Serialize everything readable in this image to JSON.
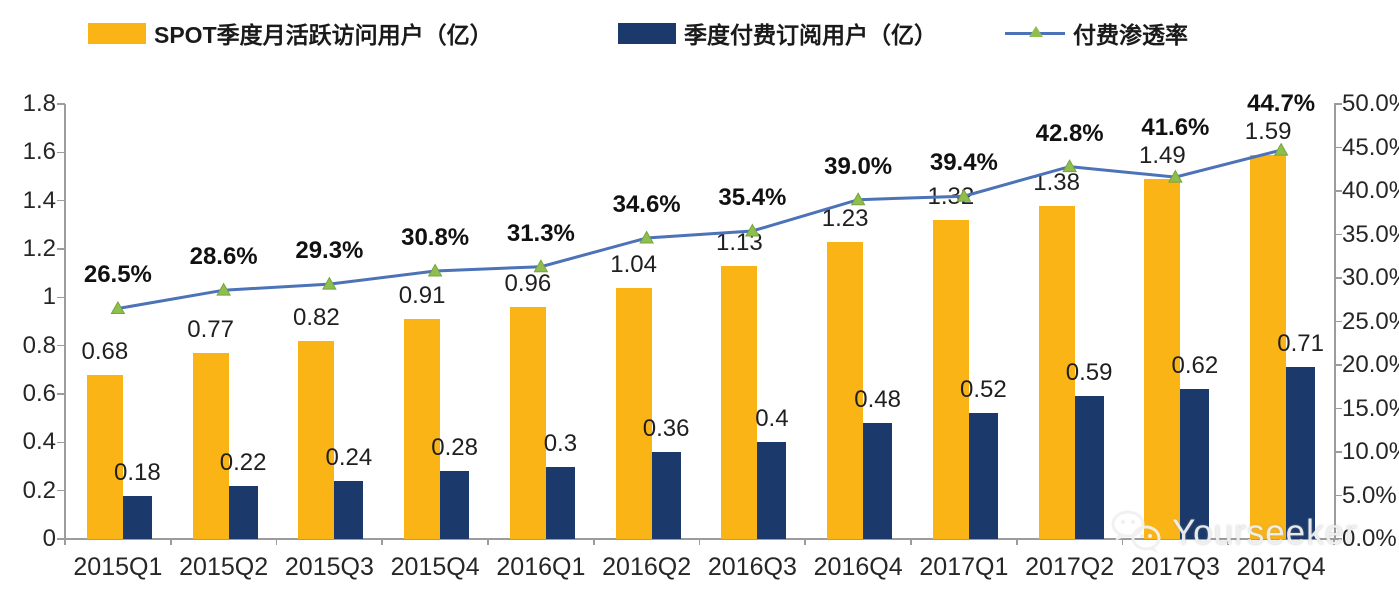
{
  "legend": {
    "items": [
      {
        "label": "SPOT季度月活跃访问用户（亿）",
        "type": "bar",
        "color": "#FBB416"
      },
      {
        "label": "季度付费订阅用户（亿）",
        "type": "bar",
        "color": "#1B3A6B"
      },
      {
        "label": "付费渗透率",
        "type": "line",
        "color": "#4C72B8",
        "marker_color": "#8FBE4F"
      }
    ]
  },
  "chart_data": {
    "type": "combo-bar-line",
    "categories": [
      "2015Q1",
      "2015Q2",
      "2015Q3",
      "2015Q4",
      "2016Q1",
      "2016Q2",
      "2016Q3",
      "2016Q4",
      "2017Q1",
      "2017Q2",
      "2017Q3",
      "2017Q4"
    ],
    "series": [
      {
        "name": "SPOT季度月活跃访问用户（亿）",
        "type": "bar",
        "axis": "left",
        "color": "#FBB416",
        "values": [
          0.68,
          0.77,
          0.82,
          0.91,
          0.96,
          1.04,
          1.13,
          1.23,
          1.32,
          1.38,
          1.49,
          1.59
        ],
        "labels": [
          "0.68",
          "0.77",
          "0.82",
          "0.91",
          "0.96",
          "1.04",
          "1.13",
          "1.23",
          "1.32",
          "1.38",
          "1.49",
          "1.59"
        ]
      },
      {
        "name": "季度付费订阅用户（亿）",
        "type": "bar",
        "axis": "left",
        "color": "#1B3A6B",
        "values": [
          0.18,
          0.22,
          0.24,
          0.28,
          0.3,
          0.36,
          0.4,
          0.48,
          0.52,
          0.59,
          0.62,
          0.71
        ],
        "labels": [
          "0.18",
          "0.22",
          "0.24",
          "0.28",
          "0.3",
          "0.36",
          "0.4",
          "0.48",
          "0.52",
          "0.59",
          "0.62",
          "0.71"
        ]
      },
      {
        "name": "付费渗透率",
        "type": "line",
        "axis": "right",
        "color": "#4C72B8",
        "marker": "triangle",
        "marker_color": "#8FBE4F",
        "marker_edge_color": "#76A53C",
        "values": [
          26.5,
          28.6,
          29.3,
          30.8,
          31.3,
          34.6,
          35.4,
          39.0,
          39.4,
          42.8,
          41.6,
          44.7
        ],
        "labels": [
          "26.5%",
          "28.6%",
          "29.3%",
          "30.8%",
          "31.3%",
          "34.6%",
          "35.4%",
          "39.0%",
          "39.4%",
          "42.8%",
          "41.6%",
          "44.7%"
        ]
      }
    ],
    "left_axis": {
      "min": 0,
      "max": 1.8,
      "step": 0.2,
      "ticks": [
        "1.8",
        "1.6",
        "1.4",
        "1.2",
        "1",
        "0.8",
        "0.6",
        "0.4",
        "0.2",
        "0"
      ]
    },
    "right_axis": {
      "min": 0,
      "max": 50,
      "step": 5,
      "ticks": [
        "50.0%",
        "45.0%",
        "40.0%",
        "35.0%",
        "30.0%",
        "25.0%",
        "20.0%",
        "15.0%",
        "10.0%",
        "5.0%",
        "0.0%"
      ]
    },
    "grid": false,
    "legend_position": "top"
  },
  "watermark": {
    "text": "Yourseeker",
    "icon": "wechat-icon"
  },
  "colors": {
    "axis": "#9c9c9c",
    "label_text": "#1f1f1f",
    "background": "#ffffff"
  }
}
